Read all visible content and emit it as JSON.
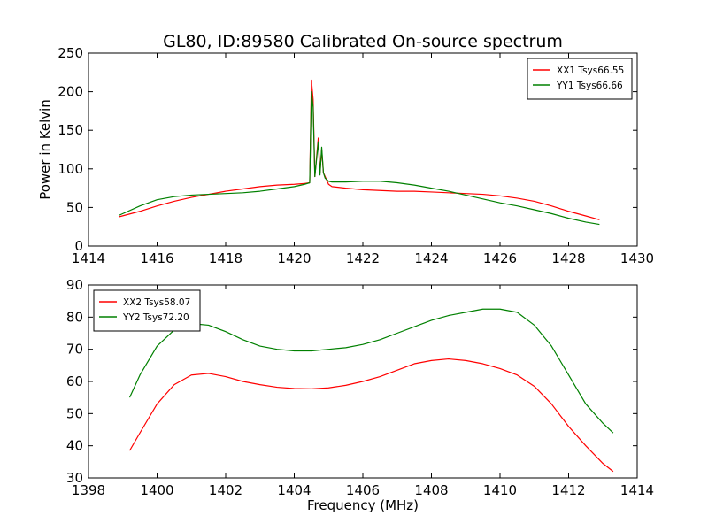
{
  "figure": {
    "title": "GL80, ID:89580 Calibrated On-source spectrum"
  },
  "chart_data": [
    {
      "type": "line",
      "title": "GL80, ID:89580 Calibrated On-source spectrum",
      "xlabel": "",
      "ylabel": "Power in Kelvin",
      "xlim": [
        1414,
        1430
      ],
      "ylim": [
        0,
        250
      ],
      "xticks": [
        1414,
        1416,
        1418,
        1420,
        1422,
        1424,
        1426,
        1428,
        1430
      ],
      "yticks": [
        0,
        50,
        100,
        150,
        200,
        250
      ],
      "grid": false,
      "legend_position": "top-right",
      "series": [
        {
          "name": "XX1 Tsys66.55",
          "color": "#ff0000",
          "x": [
            1414.9,
            1415.5,
            1416.0,
            1416.5,
            1417.0,
            1417.5,
            1418.0,
            1418.5,
            1419.0,
            1419.5,
            1420.0,
            1420.3,
            1420.45,
            1420.5,
            1420.55,
            1420.6,
            1420.7,
            1420.75,
            1420.8,
            1420.85,
            1420.9,
            1421.0,
            1421.1,
            1421.5,
            1422.0,
            1422.5,
            1423.0,
            1423.5,
            1424.0,
            1424.5,
            1425.0,
            1425.5,
            1426.0,
            1426.5,
            1427.0,
            1427.5,
            1428.0,
            1428.5,
            1428.9
          ],
          "y": [
            38,
            45,
            52,
            58,
            63,
            67,
            71,
            74,
            77,
            79,
            80,
            81,
            82,
            215,
            190,
            90,
            140,
            95,
            125,
            95,
            90,
            80,
            77,
            75,
            73,
            72,
            71,
            71,
            70,
            69,
            68,
            67,
            65,
            62,
            58,
            52,
            45,
            39,
            34
          ]
        },
        {
          "name": "YY1 Tsys66.66",
          "color": "#008000",
          "x": [
            1414.9,
            1415.5,
            1416.0,
            1416.5,
            1417.0,
            1417.5,
            1418.0,
            1418.5,
            1419.0,
            1419.5,
            1420.0,
            1420.3,
            1420.45,
            1420.5,
            1420.55,
            1420.6,
            1420.7,
            1420.75,
            1420.8,
            1420.85,
            1420.9,
            1421.0,
            1421.1,
            1421.5,
            1422.0,
            1422.5,
            1423.0,
            1423.5,
            1424.0,
            1424.5,
            1425.0,
            1425.5,
            1426.0,
            1426.5,
            1427.0,
            1427.5,
            1428.0,
            1428.5,
            1428.9
          ],
          "y": [
            40,
            52,
            60,
            64,
            66,
            67,
            68,
            69,
            71,
            74,
            77,
            80,
            82,
            200,
            180,
            90,
            135,
            92,
            128,
            95,
            88,
            84,
            83,
            83,
            84,
            84,
            82,
            79,
            75,
            71,
            66,
            61,
            56,
            52,
            47,
            42,
            36,
            31,
            28
          ]
        }
      ]
    },
    {
      "type": "line",
      "title": "",
      "xlabel": "Frequency (MHz)",
      "ylabel": "",
      "xlim": [
        1398,
        1414
      ],
      "ylim": [
        30,
        90
      ],
      "xticks": [
        1398,
        1400,
        1402,
        1404,
        1406,
        1408,
        1410,
        1412,
        1414
      ],
      "yticks": [
        30,
        40,
        50,
        60,
        70,
        80,
        90
      ],
      "grid": false,
      "legend_position": "top-left",
      "series": [
        {
          "name": "XX2 Tsys58.07",
          "color": "#ff0000",
          "x": [
            1399.2,
            1399.5,
            1400.0,
            1400.5,
            1401.0,
            1401.5,
            1402.0,
            1402.5,
            1403.0,
            1403.5,
            1404.0,
            1404.5,
            1405.0,
            1405.5,
            1406.0,
            1406.5,
            1407.0,
            1407.5,
            1408.0,
            1408.5,
            1409.0,
            1409.5,
            1410.0,
            1410.5,
            1411.0,
            1411.5,
            1412.0,
            1412.5,
            1413.0,
            1413.3
          ],
          "y": [
            38.5,
            44,
            53,
            59,
            62,
            62.5,
            61.5,
            60,
            59,
            58.2,
            57.8,
            57.7,
            58,
            58.8,
            60,
            61.5,
            63.5,
            65.5,
            66.5,
            67,
            66.5,
            65.5,
            64,
            62,
            58.5,
            53,
            46,
            40,
            34.5,
            32
          ]
        },
        {
          "name": "YY2 Tsys72.20",
          "color": "#008000",
          "x": [
            1399.2,
            1399.5,
            1400.0,
            1400.5,
            1401.0,
            1401.5,
            1402.0,
            1402.5,
            1403.0,
            1403.5,
            1404.0,
            1404.5,
            1405.0,
            1405.5,
            1406.0,
            1406.5,
            1407.0,
            1407.5,
            1408.0,
            1408.5,
            1409.0,
            1409.5,
            1410.0,
            1410.5,
            1411.0,
            1411.5,
            1412.0,
            1412.5,
            1413.0,
            1413.3
          ],
          "y": [
            55,
            62,
            71,
            76,
            78,
            77.5,
            75.5,
            73,
            71,
            70,
            69.5,
            69.5,
            70,
            70.5,
            71.5,
            73,
            75,
            77,
            79,
            80.5,
            81.5,
            82.5,
            82.5,
            81.5,
            77.5,
            71,
            62,
            53,
            47,
            44
          ]
        }
      ]
    }
  ]
}
